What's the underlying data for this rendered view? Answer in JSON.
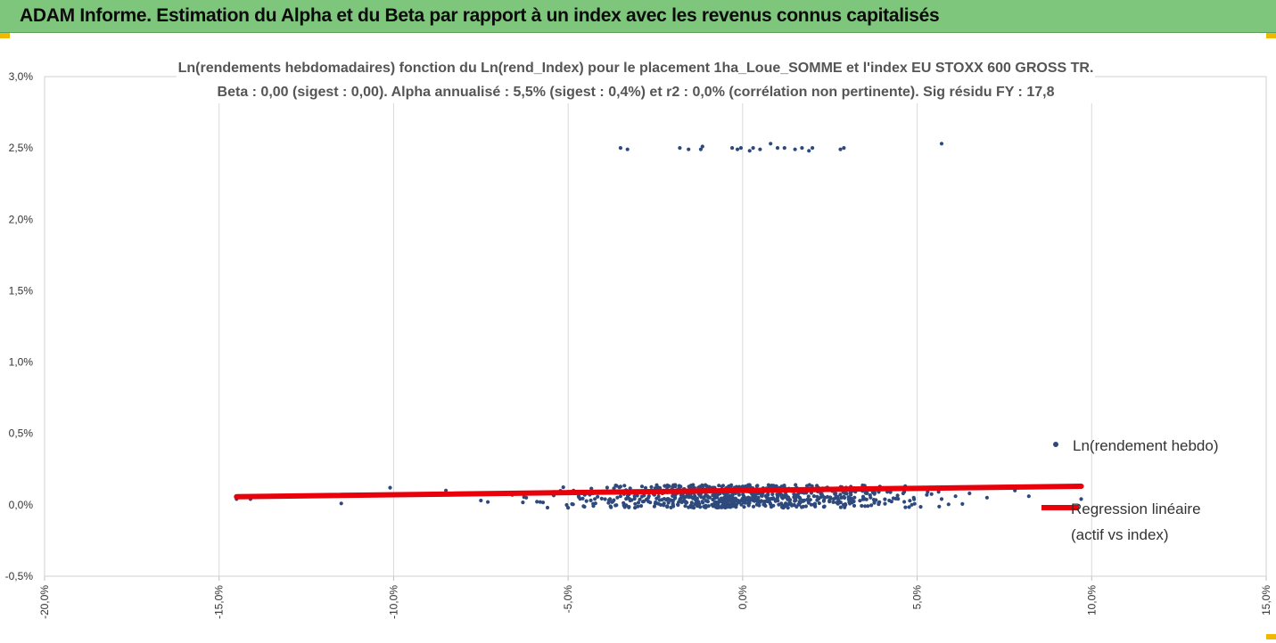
{
  "banner": {
    "title": "ADAM Informe. Estimation du Alpha et du Beta par rapport à un index avec les revenus connus capitalisés",
    "background": "#7dc67b",
    "corner_color": "#f0b800"
  },
  "chart_data": {
    "type": "scatter",
    "title": "Ln(rendements hebdomadaires) fonction du Ln(rend_Index) pour le placement 1ha_Loue_SOMME et l'index EU STOXX 600 GROSS TR.",
    "subtitle": "Beta : 0,00 (sigest : 0,00). Alpha annualisé : 5,5% (sigest : 0,4%) et r2 : 0,0% (corrélation non pertinente). Sig résidu FY : 17,8",
    "xlim": [
      -20,
      15
    ],
    "ylim": [
      -0.5,
      3.0
    ],
    "x_ticks": [
      "-20,0%",
      "-15,0%",
      "-10,0%",
      "-5,0%",
      "0,0%",
      "5,0%",
      "10,0%",
      "15,0%"
    ],
    "y_ticks": [
      "-0,5%",
      "0,0%",
      "0,5%",
      "1,0%",
      "1,5%",
      "2,0%",
      "2,5%",
      "3,0%"
    ],
    "grid": "vertical",
    "legend_position": "right",
    "series": [
      {
        "name": "Ln(rendement hebdo)",
        "color": "#2e4a7d",
        "points": [
          [
            -3.5,
            2.5
          ],
          [
            -3.3,
            2.49
          ],
          [
            -1.8,
            2.5
          ],
          [
            -1.55,
            2.49
          ],
          [
            -1.2,
            2.49
          ],
          [
            -1.15,
            2.51
          ],
          [
            -0.3,
            2.5
          ],
          [
            -0.15,
            2.49
          ],
          [
            -0.05,
            2.5
          ],
          [
            0.2,
            2.48
          ],
          [
            0.3,
            2.5
          ],
          [
            0.5,
            2.49
          ],
          [
            0.8,
            2.53
          ],
          [
            1.0,
            2.5
          ],
          [
            1.2,
            2.5
          ],
          [
            1.5,
            2.49
          ],
          [
            1.7,
            2.5
          ],
          [
            1.9,
            2.48
          ],
          [
            2.0,
            2.5
          ],
          [
            2.8,
            2.49
          ],
          [
            2.9,
            2.5
          ],
          [
            5.7,
            2.53
          ],
          [
            -14.5,
            0.04
          ],
          [
            -14.1,
            0.04
          ],
          [
            -11.5,
            0.01
          ],
          [
            -10.1,
            0.12
          ],
          [
            -9.5,
            0.07
          ],
          [
            -8.5,
            0.1
          ],
          [
            -7.5,
            0.03
          ],
          [
            -7.3,
            0.02
          ],
          [
            -6.6,
            0.07
          ],
          [
            -6.2,
            0.05
          ],
          [
            -5.8,
            0.02
          ],
          [
            -5.4,
            0.09
          ],
          [
            -5.0,
            -0.02
          ],
          [
            -4.7,
            0.06
          ],
          [
            -4.3,
            0.08
          ],
          [
            -3.8,
            0.04
          ],
          [
            -3.5,
            0.06
          ],
          [
            -3.0,
            0.09
          ],
          [
            -2.7,
            0.05
          ],
          [
            -2.3,
            0.08
          ],
          [
            -2.0,
            0.02
          ],
          [
            -1.7,
            0.1
          ],
          [
            -1.4,
            -0.02
          ],
          [
            -1.0,
            0.06
          ],
          [
            -0.8,
            0.12
          ],
          [
            -0.4,
            0.04
          ],
          [
            -0.1,
            0.07
          ],
          [
            0.2,
            0.09
          ],
          [
            0.5,
            0.02
          ],
          [
            0.7,
            0.11
          ],
          [
            1.0,
            0.05
          ],
          [
            1.3,
            -0.02
          ],
          [
            1.6,
            0.08
          ],
          [
            1.9,
            0.03
          ],
          [
            2.3,
            0.1
          ],
          [
            2.7,
            0.05
          ],
          [
            3.1,
            0.07
          ],
          [
            3.5,
            0.04
          ],
          [
            3.9,
            0.09
          ],
          [
            4.2,
            0.03
          ],
          [
            4.6,
            0.08
          ],
          [
            4.9,
            0.05
          ],
          [
            5.3,
            0.09
          ],
          [
            5.7,
            0.04
          ],
          [
            6.1,
            0.06
          ],
          [
            6.5,
            0.08
          ],
          [
            7.0,
            0.05
          ],
          [
            7.8,
            0.1
          ],
          [
            8.2,
            0.06
          ],
          [
            9.7,
            0.04
          ]
        ],
        "cloud": {
          "x_range": [
            -6.5,
            6.5
          ],
          "y_range": [
            -0.02,
            0.14
          ],
          "count": 750
        }
      },
      {
        "name": "Regression linéaire (actif vs index)",
        "color": "#e8000b",
        "line": {
          "x": [
            -14.5,
            9.7
          ],
          "y": [
            0.057,
            0.13
          ]
        }
      }
    ]
  }
}
